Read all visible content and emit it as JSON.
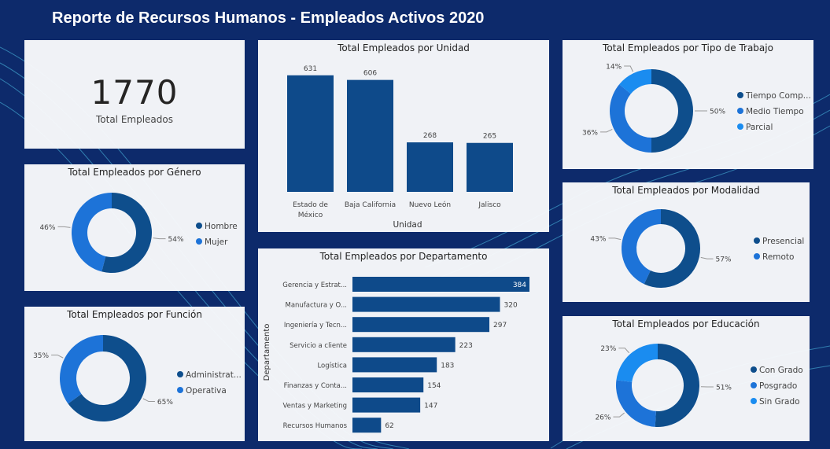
{
  "report_title": "Reporte de Recursos Humanos - Empleados Activos 2020",
  "kpi": {
    "value": "1770",
    "label": "Total Empleados"
  },
  "colors": {
    "background": "#0d2a6b",
    "dark_blue": "#0e4e8c",
    "mid_blue": "#1d73d8",
    "light_blue": "#1a8cf0",
    "bar": "#0e4a8a"
  },
  "chart_data": [
    {
      "id": "unidad",
      "type": "bar",
      "title": "Total Empleados por Unidad",
      "xlabel": "Unidad",
      "categories": [
        "Estado de\nMéxico",
        "Baja California",
        "Nuevo León",
        "Jalisco"
      ],
      "values": [
        631,
        606,
        268,
        265
      ],
      "ylim": [
        0,
        700
      ]
    },
    {
      "id": "departamento",
      "type": "bar",
      "orientation": "horizontal",
      "title": "Total Empleados por Departamento",
      "ylabel": "Departamento",
      "categories": [
        "Gerencia y Estrat...",
        "Manufactura y O...",
        "Ingeniería y Tecn...",
        "Servicio a cliente",
        "Logística",
        "Finanzas y Conta...",
        "Ventas y Marketing",
        "Recursos Humanos"
      ],
      "values": [
        384,
        320,
        297,
        223,
        183,
        154,
        147,
        62
      ],
      "xlim": [
        0,
        384
      ]
    },
    {
      "id": "genero",
      "type": "pie",
      "title": "Total Empleados por Género",
      "series": [
        {
          "name": "Hombre",
          "value": 54,
          "label": "54%",
          "color": "#0e4e8c"
        },
        {
          "name": "Mujer",
          "value": 46,
          "label": "46%",
          "color": "#1d73d8"
        }
      ]
    },
    {
      "id": "funcion",
      "type": "pie",
      "title": "Total Empleados por Función",
      "series": [
        {
          "name": "Administrat...",
          "value": 65,
          "label": "65%",
          "color": "#0e4e8c"
        },
        {
          "name": "Operativa",
          "value": 35,
          "label": "35%",
          "color": "#1d73d8"
        }
      ]
    },
    {
      "id": "tipo",
      "type": "pie",
      "title": "Total Empleados por Tipo de Trabajo",
      "series": [
        {
          "name": "Tiempo Comp...",
          "value": 50,
          "label": "50%",
          "color": "#0e4e8c"
        },
        {
          "name": "Medio Tiempo",
          "value": 36,
          "label": "36%",
          "color": "#1d73d8"
        },
        {
          "name": "Parcial",
          "value": 14,
          "label": "14%",
          "color": "#1a8cf0"
        }
      ]
    },
    {
      "id": "modalidad",
      "type": "pie",
      "title": "Total Empleados por Modalidad",
      "series": [
        {
          "name": "Presencial",
          "value": 57,
          "label": "57%",
          "color": "#0e4e8c"
        },
        {
          "name": "Remoto",
          "value": 43,
          "label": "43%",
          "color": "#1d73d8"
        }
      ]
    },
    {
      "id": "educacion",
      "type": "pie",
      "title": "Total Empleados por Educación",
      "series": [
        {
          "name": "Con Grado",
          "value": 51,
          "label": "51%",
          "color": "#0e4e8c"
        },
        {
          "name": "Posgrado",
          "value": 26,
          "label": "26%",
          "color": "#1d73d8"
        },
        {
          "name": "Sin Grado",
          "value": 23,
          "label": "23%",
          "color": "#1a8cf0"
        }
      ]
    }
  ]
}
